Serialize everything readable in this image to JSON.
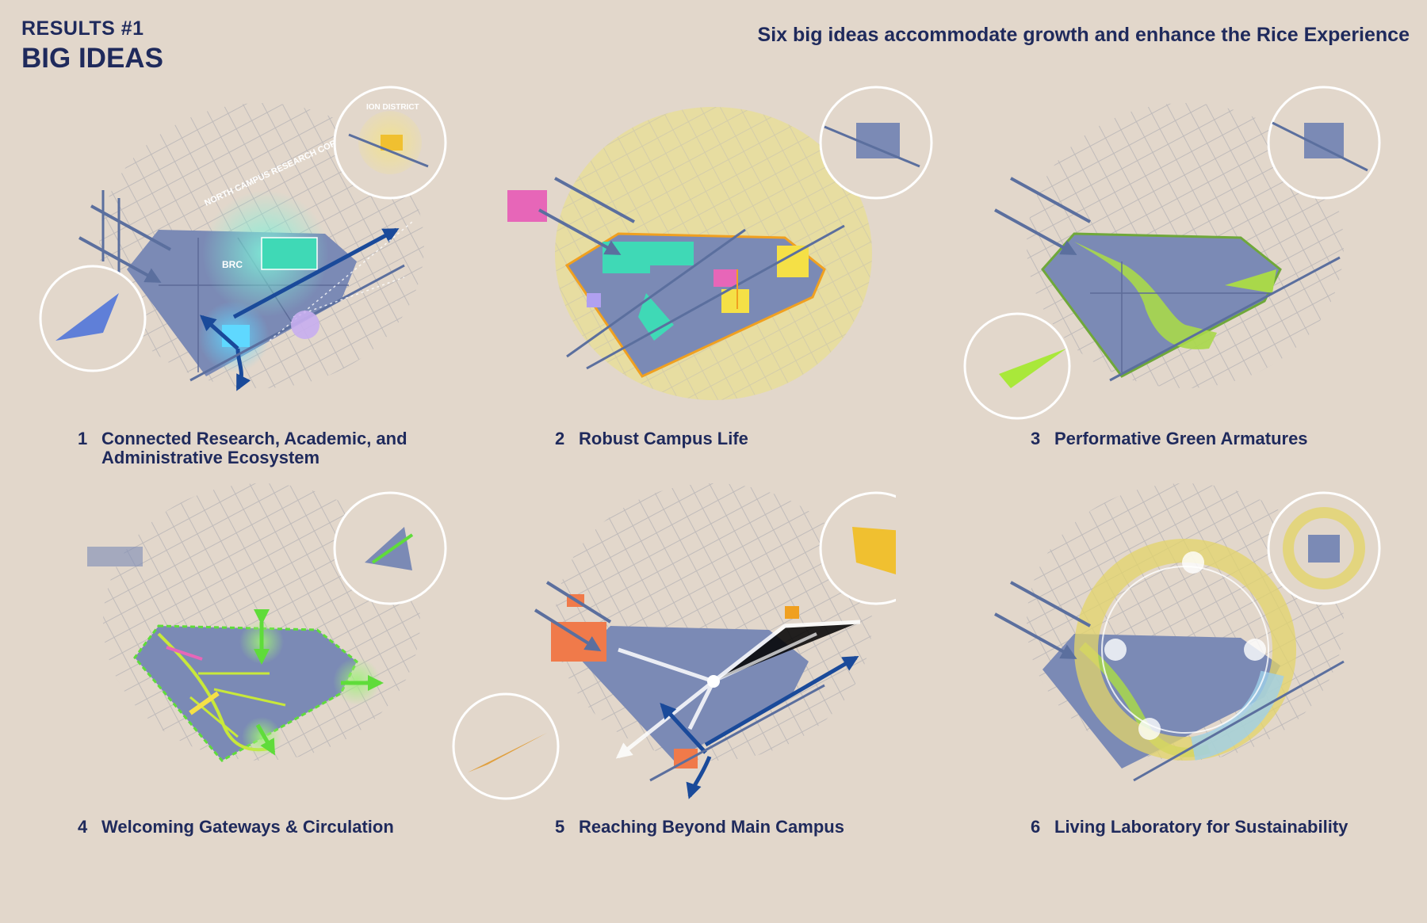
{
  "header": {
    "eyebrow": "RESULTS #1",
    "title": "BIG IDEAS",
    "subtitle": "Six big ideas accommodate growth and enhance the Rice Experience"
  },
  "colors": {
    "background": "#e2d7cb",
    "text": "#1f2a5c",
    "campus": "#7b8ab5",
    "arrow": "#1a4a9a",
    "research_teal": "#3fd9b6",
    "campus_life_yellow": "#eadf8f",
    "green_armature": "#a9d84a",
    "gateway_green": "#6fe04a",
    "reach_orange": "#f07a4a",
    "sustainability_ring": "#e3d46a"
  },
  "panels": [
    {
      "number": "1",
      "label": "Connected Research, Academic, and Administrative Ecosystem",
      "map_labels": [
        "NORTH CAMPUS RESEARCH CORRIDOR",
        "BRC",
        "ION DISTRICT"
      ]
    },
    {
      "number": "2",
      "label": "Robust Campus Life",
      "map_labels": []
    },
    {
      "number": "3",
      "label": "Performative Green Armatures",
      "map_labels": []
    },
    {
      "number": "4",
      "label": "Welcoming Gateways & Circulation",
      "map_labels": []
    },
    {
      "number": "5",
      "label": "Reaching Beyond Main Campus",
      "map_labels": []
    },
    {
      "number": "6",
      "label": "Living Laboratory for Sustainability",
      "map_labels": []
    }
  ]
}
